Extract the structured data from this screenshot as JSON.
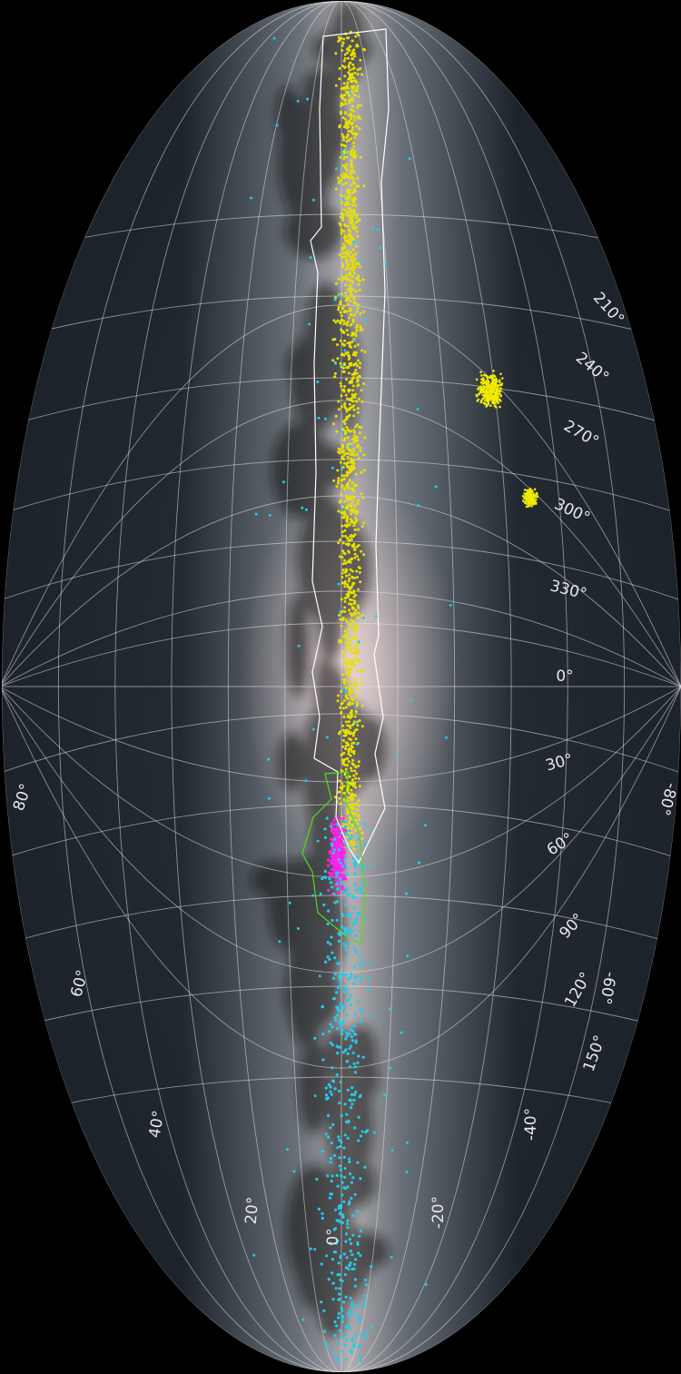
{
  "labels": {
    "longitude": [
      "210°",
      "240°",
      "270°",
      "300°",
      "330°",
      "0°",
      "30°",
      "60°",
      "90°",
      "120°",
      "150°"
    ],
    "latitude": [
      "80°",
      "60°",
      "40°",
      "20°",
      "0°",
      "-20°",
      "-40°",
      "-60°",
      "-80°"
    ]
  }
}
